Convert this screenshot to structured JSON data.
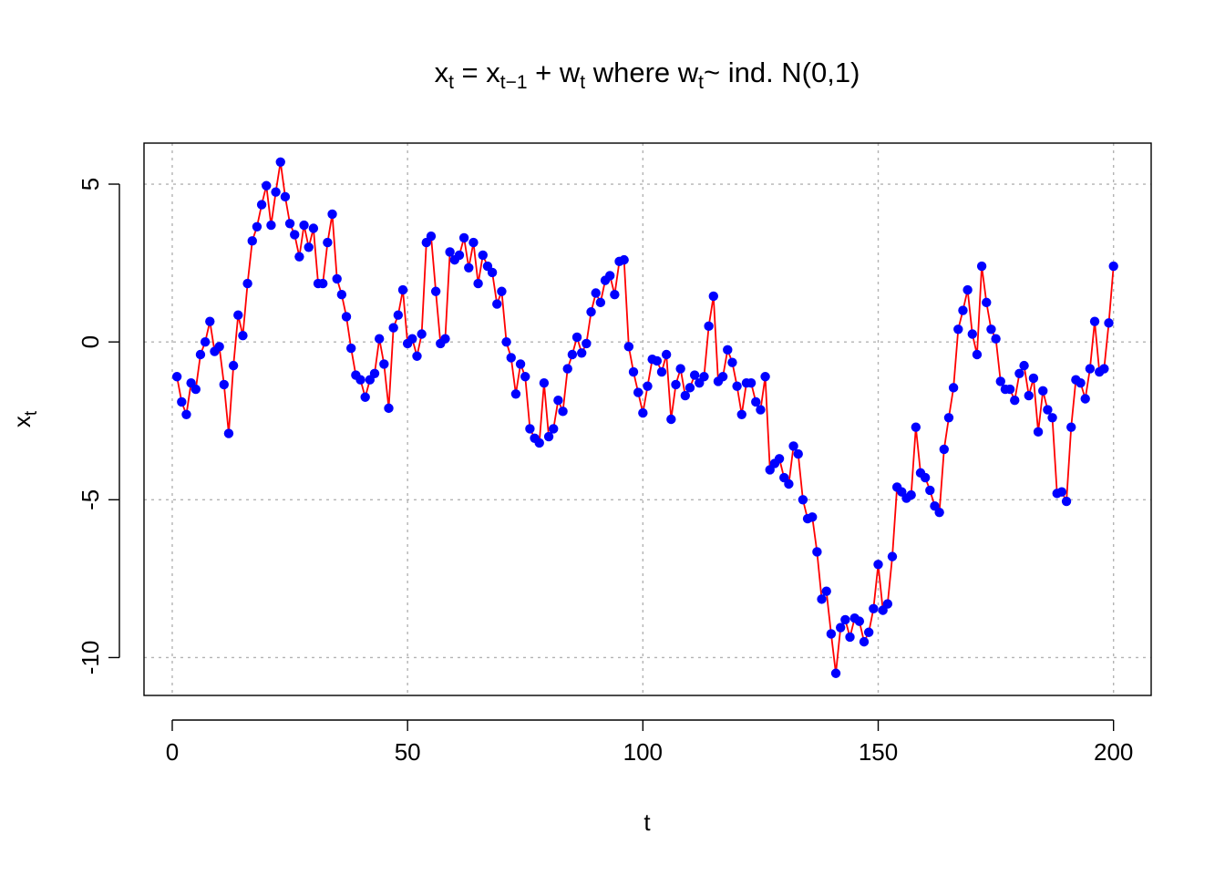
{
  "chart_data": {
    "type": "line",
    "title": {
      "parts": [
        {
          "text": "x",
          "sub": false
        },
        {
          "text": "t",
          "sub": true
        },
        {
          "text": " = x",
          "sub": false
        },
        {
          "text": "t−1",
          "sub": true
        },
        {
          "text": " + w",
          "sub": false
        },
        {
          "text": "t",
          "sub": true
        },
        {
          "text": " where w",
          "sub": false
        },
        {
          "text": "t",
          "sub": true
        },
        {
          "text": "~ ind. N(0,1)",
          "sub": false
        }
      ]
    },
    "xlabel": "t",
    "ylabel": {
      "main": "x",
      "sub": "t"
    },
    "xlim": [
      -6,
      208
    ],
    "ylim": [
      -11.2,
      6.3
    ],
    "xticks": [
      0,
      50,
      100,
      150,
      200
    ],
    "xtick_labels": [
      "0",
      "50",
      "100",
      "150",
      "200"
    ],
    "yticks": [
      -10,
      -5,
      0,
      5
    ],
    "ytick_labels": [
      "-10",
      "-5",
      "0",
      "5"
    ],
    "grid": true,
    "line_color": "#ff0000",
    "point_color": "#0000ff",
    "series": [
      {
        "x_start": 1,
        "values": [
          -1.1,
          -1.9,
          -2.3,
          -1.3,
          -1.5,
          -0.4,
          0.0,
          0.65,
          -0.3,
          -0.15,
          -1.35,
          -2.9,
          -0.75,
          0.85,
          0.2,
          1.85,
          3.2,
          3.65,
          4.35,
          4.95,
          3.7,
          4.75,
          5.7,
          4.6,
          3.75,
          3.4,
          2.7,
          3.7,
          3.0,
          3.6,
          1.85,
          1.85,
          3.15,
          4.05,
          2.0,
          1.5,
          0.8,
          -0.2,
          -1.05,
          -1.2,
          -1.75,
          -1.2,
          -1.0,
          0.1,
          -0.7,
          -2.1,
          0.45,
          0.85,
          1.65,
          -0.05,
          0.1,
          -0.45,
          0.25,
          3.15,
          3.35,
          1.6,
          -0.05,
          0.1,
          2.85,
          2.6,
          2.75,
          3.3,
          2.35,
          3.15,
          1.85,
          2.75,
          2.4,
          2.2,
          1.2,
          1.6,
          0.0,
          -0.5,
          -1.65,
          -0.7,
          -1.1,
          -2.75,
          -3.05,
          -3.2,
          -1.3,
          -3.0,
          -2.75,
          -1.85,
          -2.2,
          -0.85,
          -0.4,
          0.15,
          -0.35,
          -0.05,
          0.95,
          1.55,
          1.25,
          1.95,
          2.1,
          1.5,
          2.55,
          2.6,
          -0.15,
          -0.95,
          -1.6,
          -2.25,
          -1.4,
          -0.55,
          -0.6,
          -0.95,
          -0.4,
          -2.45,
          -1.35,
          -0.85,
          -1.7,
          -1.45,
          -1.05,
          -1.3,
          -1.1,
          0.5,
          1.45,
          -1.25,
          -1.1,
          -0.25,
          -0.65,
          -1.4,
          -2.3,
          -1.3,
          -1.3,
          -1.9,
          -2.15,
          -1.1,
          -4.05,
          -3.85,
          -3.7,
          -4.3,
          -4.5,
          -3.3,
          -3.55,
          -5.0,
          -5.6,
          -5.55,
          -6.65,
          -8.15,
          -7.9,
          -9.25,
          -10.5,
          -9.05,
          -8.8,
          -9.35,
          -8.75,
          -8.85,
          -9.5,
          -9.2,
          -8.45,
          -7.05,
          -8.5,
          -8.3,
          -6.8,
          -4.6,
          -4.75,
          -4.95,
          -4.85,
          -2.7,
          -4.15,
          -4.3,
          -4.7,
          -5.2,
          -5.4,
          -3.4,
          -2.4,
          -1.45,
          0.4,
          1.0,
          1.65,
          0.25,
          -0.4,
          2.4,
          1.25,
          0.4,
          0.1,
          -1.25,
          -1.5,
          -1.5,
          -1.85,
          -1.0,
          -0.75,
          -1.7,
          -1.15,
          -2.85,
          -1.55,
          -2.15,
          -2.4,
          -4.8,
          -4.75,
          -5.05,
          -2.7,
          -1.2,
          -1.3,
          -1.8,
          -0.85,
          0.65,
          -0.95,
          -0.85,
          0.6,
          2.4
        ]
      }
    ]
  }
}
